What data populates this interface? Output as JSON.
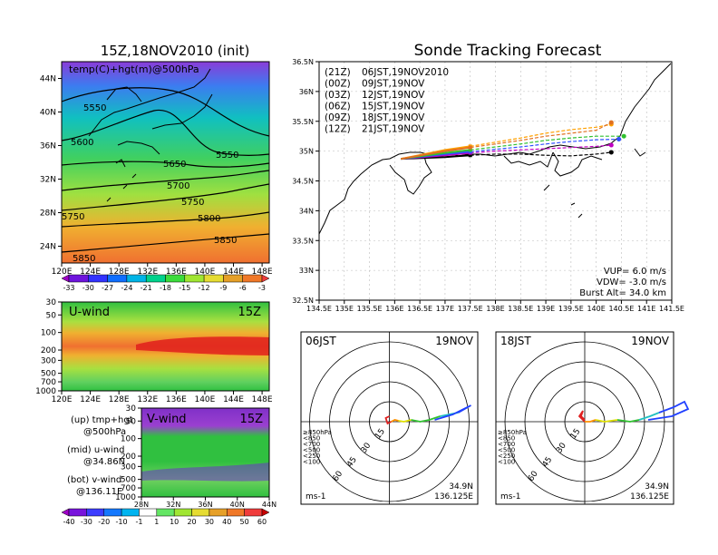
{
  "left_title": "15Z,18NOV2010 (init)",
  "main_title": "Sonde Tracking Forecast",
  "map_panel": {
    "label": "temp(C)+hgt(m)@500hPa",
    "x_ticks": [
      "120E",
      "124E",
      "128E",
      "132E",
      "136E",
      "140E",
      "144E",
      "148E"
    ],
    "y_ticks": [
      "44N",
      "40N",
      "36N",
      "32N",
      "28N",
      "24N"
    ],
    "contour_labels": [
      "5550",
      "5600",
      "5650",
      "5700",
      "5750",
      "5800",
      "5850",
      "5550",
      "5750",
      "5850"
    ],
    "colorbar_ticks": [
      "-33",
      "-30",
      "-27",
      "-24",
      "-21",
      "-18",
      "-15",
      "-12",
      "-9",
      "-6",
      "-3"
    ]
  },
  "u_panel": {
    "label": "U-wind",
    "time": "15Z",
    "y_ticks": [
      "30",
      "50",
      "100",
      "200",
      "300",
      "500",
      "700",
      "1000"
    ],
    "x_ticks": [
      "120E",
      "124E",
      "128E",
      "132E",
      "136E",
      "140E",
      "144E",
      "148E"
    ]
  },
  "v_panel": {
    "label": "V-wind",
    "time": "15Z",
    "y_ticks": [
      "30",
      "50",
      "100",
      "200",
      "300",
      "500",
      "700",
      "1000"
    ],
    "x_ticks": [
      "28N",
      "32N",
      "36N",
      "40N",
      "44N"
    ],
    "colorbar_ticks": [
      "-40",
      "-30",
      "-20",
      "-10",
      "-1",
      "1",
      "10",
      "20",
      "30",
      "40",
      "50",
      "60"
    ]
  },
  "legend_notes": [
    {
      "a": "(up) tmp+hgt",
      "b": "@500hPa"
    },
    {
      "a": "(mid) u-wind",
      "b": "@34.86N"
    },
    {
      "a": "(bot) v-wind",
      "b": "@136.11E"
    }
  ],
  "track_map": {
    "x_ticks": [
      "134.5E",
      "135E",
      "135.5E",
      "136E",
      "136.5E",
      "137E",
      "137.5E",
      "138E",
      "138.5E",
      "139E",
      "139.5E",
      "140E",
      "140.5E",
      "141E",
      "141.5E"
    ],
    "y_ticks": [
      "36.5N",
      "36N",
      "35.5N",
      "35N",
      "34.5N",
      "34N",
      "33.5N",
      "33N",
      "32.5N"
    ],
    "launches": [
      {
        "tag": "(21Z)",
        "time": "06JST,19NOV2010",
        "color": "#000000"
      },
      {
        "tag": "(00Z)",
        "time": "09JST,19NOV",
        "color": "#c000c0"
      },
      {
        "tag": "(03Z)",
        "time": "12JST,19NOV",
        "color": "#3050ff"
      },
      {
        "tag": "(06Z)",
        "time": "15JST,19NOV",
        "color": "#30c030"
      },
      {
        "tag": "(09Z)",
        "time": "18JST,19NOV",
        "color": "#ffa000"
      },
      {
        "tag": "(12Z)",
        "time": "21JST,19NOV",
        "color": "#e07020"
      }
    ],
    "params": [
      "VUP= 6.0 m/s",
      "VDW= -3.0 m/s",
      "Burst Alt= 34.0 km"
    ]
  },
  "hodographs": [
    {
      "time": "06JST",
      "date": "19NOV",
      "unit": "ms-1",
      "lat": "34.9N",
      "lon": "136.125E",
      "ring_labels": [
        "15",
        "30",
        "45",
        "60"
      ]
    },
    {
      "time": "18JST",
      "date": "19NOV",
      "unit": "ms-1",
      "lat": "34.9N",
      "lon": "136.125E",
      "ring_labels": [
        "15",
        "30",
        "45",
        "60"
      ]
    }
  ],
  "level_legend": [
    {
      "label": "≥850hPa",
      "color": "#e02020"
    },
    {
      "label": "<850",
      "color": "#ff9000"
    },
    {
      "label": "<700",
      "color": "#e0e000"
    },
    {
      "label": "<500",
      "color": "#30c030"
    },
    {
      "label": "<250",
      "color": "#20c0c0"
    },
    {
      "label": "<100",
      "color": "#2040ff"
    }
  ],
  "chart_data": [
    {
      "type": "heatmap",
      "title": "15Z,18NOV2010 (init)",
      "subtitle": "temp(C)+hgt(m)@500hPa",
      "x_range": [
        120,
        149
      ],
      "y_range": [
        22,
        46
      ],
      "contour_levels": [
        5550,
        5600,
        5650,
        5700,
        5750,
        5800,
        5850
      ],
      "color_levels": [
        -33,
        -30,
        -27,
        -24,
        -21,
        -18,
        -15,
        -12,
        -9,
        -6,
        -3
      ],
      "colors": [
        "#a000c8",
        "#6e14dc",
        "#3232ff",
        "#0f6eff",
        "#00b4e6",
        "#00d28c",
        "#3cdc3c",
        "#a0e632",
        "#e6dc32",
        "#e6a028",
        "#f07828",
        "#f03c3c"
      ]
    },
    {
      "type": "heatmap",
      "title": "U-wind",
      "x_range": [
        120,
        149
      ],
      "levels_hPa": [
        30,
        50,
        100,
        200,
        300,
        500,
        700,
        1000
      ]
    },
    {
      "type": "heatmap",
      "title": "V-wind",
      "x_range": [
        28,
        44
      ],
      "levels_hPa": [
        30,
        50,
        100,
        200,
        300,
        500,
        700,
        1000
      ],
      "color_levels": [
        -40,
        -30,
        -20,
        -10,
        -1,
        1,
        10,
        20,
        30,
        40,
        50,
        60
      ],
      "colors": [
        "#a000c8",
        "#7814dc",
        "#3c3cff",
        "#1478ff",
        "#00b4f0",
        "#ffffff",
        "#64e664",
        "#a0e632",
        "#e6dc32",
        "#e6a028",
        "#f07828",
        "#f03c3c",
        "#c80000"
      ]
    },
    {
      "type": "line",
      "title": "Sonde Tracking Forecast",
      "xlim": [
        134.5,
        141.5
      ],
      "ylim": [
        32.5,
        36.5
      ],
      "series": [
        {
          "name": "(21Z)",
          "x": [
            136.125,
            137.0,
            137.5,
            138.0,
            138.5,
            139.0,
            139.5,
            140.0,
            140.3
          ],
          "y": [
            34.87,
            34.9,
            34.93,
            34.95,
            34.95,
            34.93,
            34.92,
            34.95,
            34.98
          ]
        },
        {
          "name": "(00Z)",
          "x": [
            136.125,
            137.0,
            137.5,
            138.0,
            138.5,
            139.0,
            139.5,
            140.0,
            140.3
          ],
          "y": [
            34.87,
            34.93,
            34.97,
            35.0,
            35.02,
            35.04,
            35.06,
            35.08,
            35.1
          ]
        },
        {
          "name": "(03Z)",
          "x": [
            136.125,
            137.0,
            137.5,
            138.0,
            138.5,
            139.0,
            139.5,
            140.0,
            140.45
          ],
          "y": [
            34.87,
            34.95,
            34.99,
            35.03,
            35.07,
            35.12,
            35.16,
            35.19,
            35.2
          ]
        },
        {
          "name": "(06Z)",
          "x": [
            136.125,
            137.0,
            137.5,
            138.0,
            138.5,
            139.0,
            139.5,
            140.0,
            140.55
          ],
          "y": [
            34.87,
            34.97,
            35.02,
            35.07,
            35.12,
            35.18,
            35.22,
            35.25,
            35.25
          ]
        },
        {
          "name": "(09Z)",
          "x": [
            136.125,
            137.0,
            137.5,
            138.0,
            138.5,
            139.0,
            139.5,
            140.0,
            140.3
          ],
          "y": [
            34.87,
            35.02,
            35.08,
            35.15,
            35.22,
            35.3,
            35.36,
            35.4,
            35.45
          ]
        },
        {
          "name": "(12Z)",
          "x": [
            136.125,
            137.0,
            137.5,
            138.0,
            138.5,
            139.0,
            139.5,
            140.0,
            140.3
          ],
          "y": [
            34.87,
            35.0,
            35.06,
            35.12,
            35.18,
            35.25,
            35.3,
            35.35,
            35.48
          ]
        }
      ]
    }
  ]
}
